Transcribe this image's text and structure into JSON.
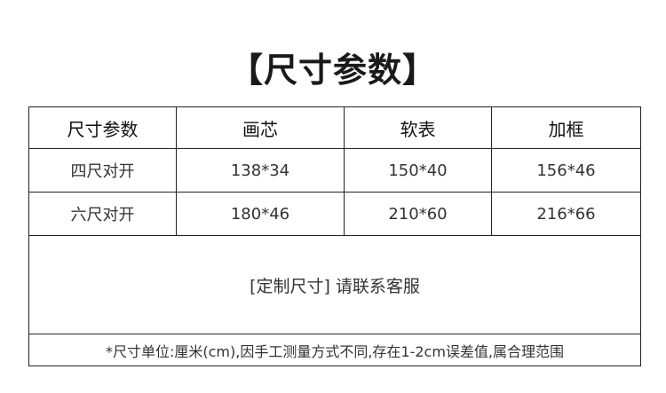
{
  "title": "【尺寸参数】",
  "table": {
    "headers": [
      "尺寸参数",
      "画芯",
      "软表",
      "加框"
    ],
    "rows": [
      [
        "四尺对开",
        "138*34",
        "150*40",
        "156*46"
      ],
      [
        "六尺对开",
        "180*46",
        "210*60",
        "216*66"
      ]
    ],
    "custom_note": "[定制尺寸] 请联系客服",
    "footnote": "*尺寸单位:厘米(cm),因手工测量方式不同,存在1-2cm误差值,属合理范围"
  }
}
